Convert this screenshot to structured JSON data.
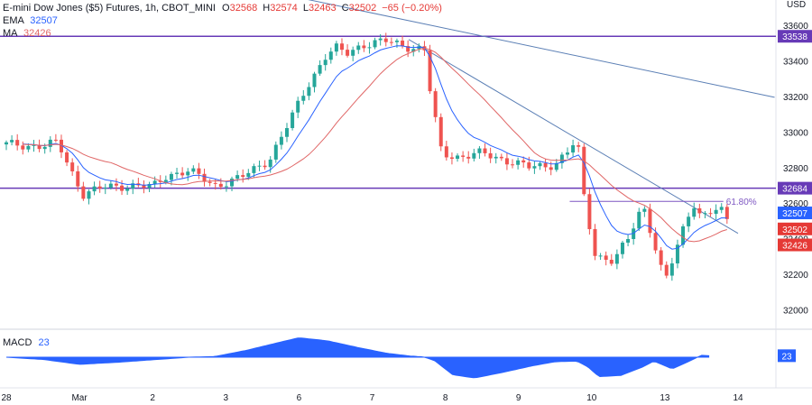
{
  "header": {
    "title": "E-mini Dow Jones ($5) Futures, 1h, CBOT_MINI",
    "ohlc": [
      {
        "label": "O",
        "value": "32568"
      },
      {
        "label": "H",
        "value": "32574"
      },
      {
        "label": "L",
        "value": "32463"
      },
      {
        "label": "C",
        "value": "32502"
      }
    ],
    "change": "−65 (−0.20%)",
    "indicators": [
      {
        "name": "EMA",
        "value": "32507"
      },
      {
        "name": "MA",
        "value": "32426"
      }
    ]
  },
  "axis": {
    "currency": "USD"
  },
  "colors": {
    "up": "#26a69a",
    "down": "#ef5350",
    "ema": "#2962ff",
    "ma": "#e06666",
    "hline": "#673ab7",
    "trend": "#5b7fb5",
    "macd": "#2962ff",
    "grid": "#f0f3fa",
    "label_red": "#e53935",
    "label_blue": "#2962ff",
    "label_dark": "#131722"
  },
  "chart_data": [
    {
      "type": "candlestick",
      "title": "E-mini Dow Jones ($5) Futures, 1h, CBOT_MINI",
      "ylim": [
        31900,
        33750
      ],
      "y_ticks": [
        "33600",
        "33400",
        "33200",
        "33000",
        "32800",
        "32600",
        "32400",
        "32200",
        "32000"
      ],
      "x_ticks": [
        "28",
        "Mar",
        "2",
        "3",
        "6",
        "7",
        "8",
        "9",
        "10",
        "13",
        "14"
      ],
      "x_tick_t": [
        0,
        1,
        2,
        3,
        4,
        5,
        6,
        7,
        8,
        9,
        10
      ],
      "keyframes_t": [
        0,
        0.5,
        0.7,
        0.95,
        1.05,
        1.35,
        1.7,
        2.0,
        2.2,
        2.5,
        2.85,
        3.2,
        3.6,
        3.85,
        4.1,
        4.35,
        4.5,
        4.65,
        4.85,
        5.2,
        5.5,
        5.72,
        5.8,
        5.95,
        6.2,
        6.5,
        6.85,
        7.15,
        7.5,
        7.7,
        7.8,
        7.9,
        8.05,
        8.3,
        8.5,
        8.7,
        8.85,
        9.0,
        9.15,
        9.3,
        9.4,
        9.5,
        9.6,
        9.75,
        9.85
      ],
      "keyframes_price": [
        32930,
        32920,
        32940,
        32730,
        32650,
        32690,
        32700,
        32690,
        32760,
        32780,
        32700,
        32740,
        32850,
        33040,
        33250,
        33420,
        33470,
        33440,
        33490,
        33510,
        33480,
        33460,
        33200,
        32880,
        32860,
        32880,
        32840,
        32800,
        32820,
        32900,
        32960,
        32620,
        32310,
        32270,
        32400,
        32600,
        32380,
        32150,
        32330,
        32520,
        32600,
        32520,
        32540,
        32570,
        32502
      ],
      "ema_value": 32507,
      "ma_value": 32426,
      "horizontal_levels": [
        {
          "price": 33538,
          "label": "33538"
        },
        {
          "price": 32684,
          "label": "32684"
        }
      ],
      "fib_level": {
        "label": "61.80%",
        "price": 32610,
        "t_start": 7.7,
        "t_end": 9.8
      },
      "trendlines": [
        {
          "t1": 2.55,
          "p1": 33880,
          "t2": 10.5,
          "p2": 33195
        },
        {
          "t1": 5.5,
          "p1": 33520,
          "t2": 10.0,
          "p2": 32430
        }
      ],
      "price_labels": [
        {
          "text": "32507",
          "price": 32545,
          "color": "ema"
        },
        {
          "text": "32502",
          "price": 32455,
          "color": "down"
        },
        {
          "text": "32426",
          "price": 32365,
          "color": "down"
        }
      ]
    },
    {
      "type": "area",
      "title": "MACD",
      "value_label": "23",
      "keyframes_t": [
        0,
        0.5,
        1.0,
        1.5,
        2.0,
        2.5,
        2.85,
        3.3,
        3.7,
        4.0,
        4.4,
        4.8,
        5.2,
        5.5,
        5.7,
        5.85,
        6.1,
        6.4,
        6.8,
        7.2,
        7.5,
        7.8,
        7.95,
        8.1,
        8.4,
        8.7,
        8.85,
        9.1,
        9.3,
        9.5,
        9.6
      ],
      "keyframes_value": [
        0,
        -35,
        -110,
        -80,
        -40,
        0,
        10,
        110,
        220,
        300,
        250,
        150,
        60,
        20,
        5,
        -50,
        -270,
        -320,
        -230,
        -130,
        -70,
        -60,
        -150,
        -300,
        -280,
        -150,
        -60,
        -180,
        -80,
        30,
        23
      ],
      "ylim": [
        -340,
        340
      ]
    }
  ]
}
